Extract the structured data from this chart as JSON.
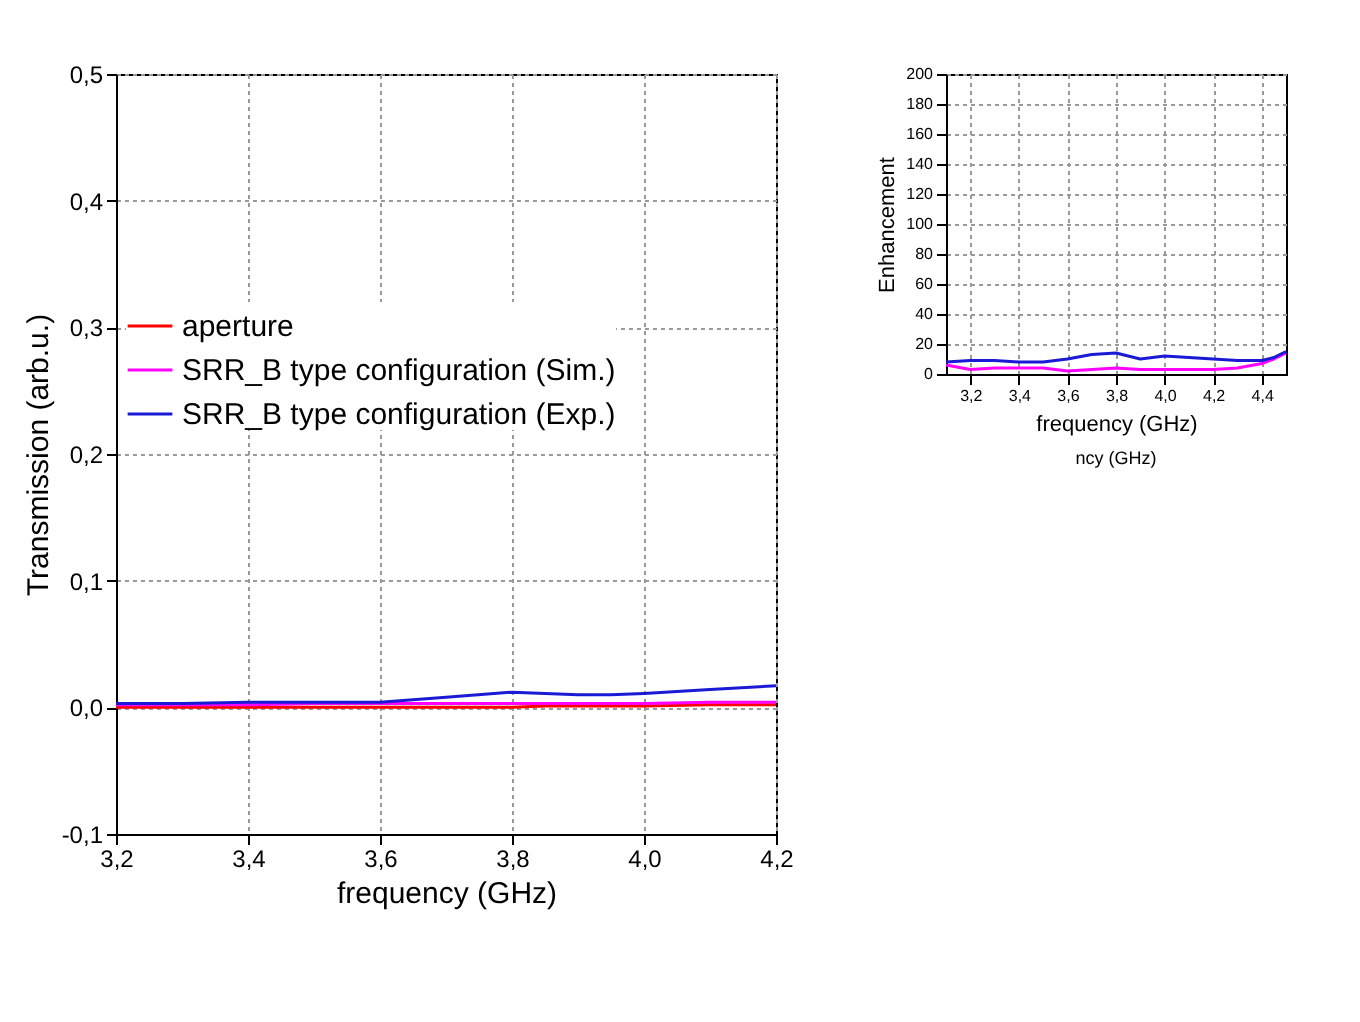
{
  "chart_data": [
    {
      "type": "line",
      "xlabel": "frequency (GHz)",
      "ylabel": "Transmission (arb.u.)",
      "x": [
        3.2,
        3.3,
        3.4,
        3.5,
        3.6,
        3.7,
        3.8,
        3.85,
        3.9,
        3.95,
        4.0,
        4.1,
        4.2
      ],
      "series": [
        {
          "name": "aperture",
          "color": "#ff0000",
          "values": [
            0.0,
            0.0,
            0.0,
            0.0,
            0.0,
            0.0,
            0.0,
            0.001,
            0.001,
            0.001,
            0.001,
            0.002,
            0.002
          ]
        },
        {
          "name": "SRR_B type configuration (Sim.)",
          "color": "#ff00ff",
          "values": [
            0.002,
            0.002,
            0.002,
            0.003,
            0.003,
            0.003,
            0.003,
            0.003,
            0.003,
            0.003,
            0.003,
            0.004,
            0.004
          ]
        },
        {
          "name": "SRR_B type configuration (Exp.)",
          "color": "#1a1ad6",
          "values": [
            0.003,
            0.003,
            0.004,
            0.004,
            0.004,
            0.008,
            0.012,
            0.011,
            0.01,
            0.01,
            0.011,
            0.014,
            0.017
          ]
        }
      ],
      "xlim": [
        3.2,
        4.2
      ],
      "ylim": [
        -0.1,
        0.5
      ],
      "xticks": [
        {
          "value": 3.2,
          "label": "3,2"
        },
        {
          "value": 3.4,
          "label": "3,4"
        },
        {
          "value": 3.6,
          "label": "3,6"
        },
        {
          "value": 3.8,
          "label": "3,8"
        },
        {
          "value": 4.0,
          "label": "4,0"
        },
        {
          "value": 4.2,
          "label": "4,2"
        }
      ],
      "yticks": [
        {
          "value": -0.1,
          "label": "-0,1"
        },
        {
          "value": 0.0,
          "label": "0,0"
        },
        {
          "value": 0.1,
          "label": "0,1"
        },
        {
          "value": 0.2,
          "label": "0,2"
        },
        {
          "value": 0.3,
          "label": "0,3"
        },
        {
          "value": 0.4,
          "label": "0,4"
        },
        {
          "value": 0.5,
          "label": "0,5"
        }
      ],
      "grid": true,
      "legend": "left",
      "line_style": "solid",
      "marker": "none"
    },
    {
      "type": "line",
      "xlabel": "frequency (GHz)",
      "ylabel": "Enhancement",
      "annotations": [
        "ncy (GHz)"
      ],
      "x": [
        3.1,
        3.2,
        3.3,
        3.4,
        3.5,
        3.6,
        3.7,
        3.8,
        3.9,
        4.0,
        4.1,
        4.2,
        4.3,
        4.4,
        4.45,
        4.5
      ],
      "series": [
        {
          "color": "#ff00ff",
          "values": [
            6,
            3,
            4,
            4,
            4,
            2,
            3,
            4,
            3,
            3,
            3,
            3,
            4,
            7,
            10,
            14
          ]
        },
        {
          "color": "#1a1ad6",
          "values": [
            8,
            9,
            9,
            8,
            8,
            10,
            13,
            14,
            10,
            12,
            11,
            10,
            9,
            9,
            11,
            15
          ]
        }
      ],
      "xlim": [
        3.1,
        4.5
      ],
      "ylim": [
        0,
        200
      ],
      "xticks": [
        {
          "value": 3.2,
          "label": "3,2"
        },
        {
          "value": 3.4,
          "label": "3,4"
        },
        {
          "value": 3.6,
          "label": "3,6"
        },
        {
          "value": 3.8,
          "label": "3,8"
        },
        {
          "value": 4.0,
          "label": "4,0"
        },
        {
          "value": 4.2,
          "label": "4,2"
        },
        {
          "value": 4.4,
          "label": "4,4"
        }
      ],
      "yticks": [
        0,
        20,
        40,
        60,
        80,
        100,
        120,
        140,
        160,
        180,
        200
      ],
      "grid": true,
      "line_style": "solid",
      "marker": "none"
    }
  ]
}
